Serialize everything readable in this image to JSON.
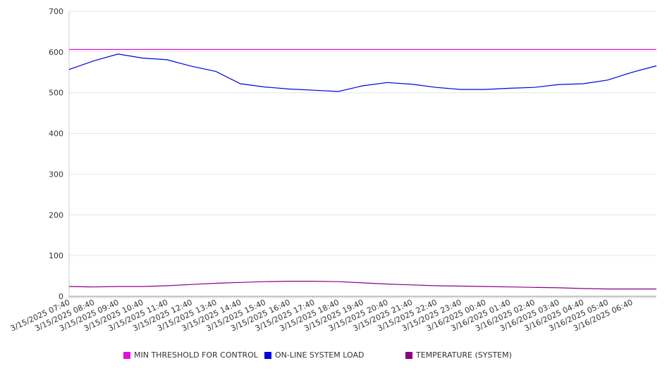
{
  "chart_data": {
    "type": "line",
    "title": "",
    "xlabel": "",
    "ylabel": "",
    "ylim": [
      0,
      700
    ],
    "yticks": [
      0,
      100,
      200,
      300,
      400,
      500,
      600,
      700
    ],
    "xtick_labels": [
      "3/15/2025 07:40",
      "3/15/2025 08:40",
      "3/15/2025 09:40",
      "3/15/2025 10:40",
      "3/15/2025 11:40",
      "3/15/2025 12:40",
      "3/15/2025 13:40",
      "3/15/2025 14:40",
      "3/15/2025 15:40",
      "3/15/2025 16:40",
      "3/15/2025 17:40",
      "3/15/2025 18:40",
      "3/15/2025 19:40",
      "3/15/2025 20:40",
      "3/15/2025 21:40",
      "3/15/2025 22:40",
      "3/15/2025 23:40",
      "3/16/2025 00:40",
      "3/16/2025 01:40",
      "3/16/2025 02:40",
      "3/16/2025 03:40",
      "3/16/2025 04:40",
      "3/16/2025 05:40",
      "3/16/2025 06:40"
    ],
    "grid": true,
    "legend_position": "bottom",
    "series": [
      {
        "name": "MIN THRESHOLD FOR CONTROL",
        "color": "#e010e0",
        "values": [
          606,
          606,
          606,
          606,
          606,
          606,
          606,
          606,
          606,
          606,
          606,
          606,
          606,
          606,
          606,
          606,
          606,
          606,
          606,
          606,
          606,
          606,
          606,
          606,
          606
        ]
      },
      {
        "name": "ON-LINE SYSTEM LOAD",
        "color": "#0000dd",
        "values": [
          557,
          578,
          595,
          585,
          581,
          565,
          552,
          522,
          514,
          509,
          506,
          503,
          517,
          525,
          521,
          513,
          508,
          508,
          511,
          513,
          520,
          522,
          531,
          550,
          566
        ]
      },
      {
        "name": "TEMPERATURE (SYSTEM)",
        "color": "#880088",
        "values": [
          24,
          23,
          24,
          24,
          26,
          29,
          32,
          34,
          36,
          37,
          37,
          36,
          33,
          30,
          28,
          26,
          25,
          24,
          23,
          22,
          21,
          19,
          18,
          18,
          18
        ]
      }
    ]
  }
}
